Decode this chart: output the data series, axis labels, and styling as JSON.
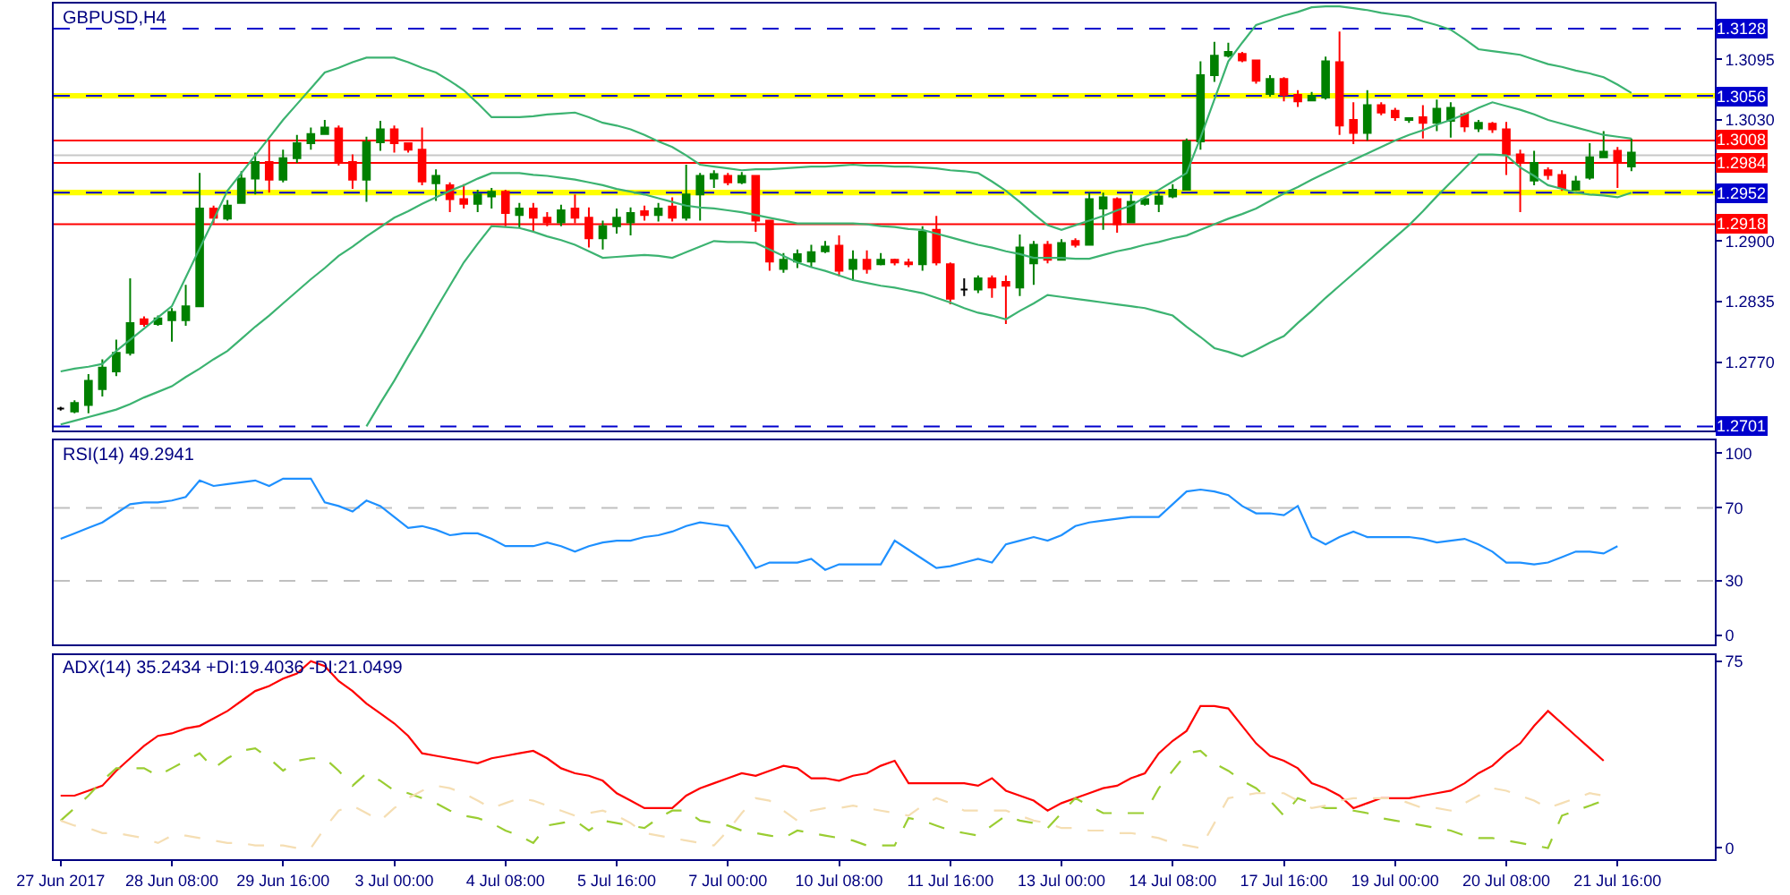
{
  "chart_data": [
    {
      "type": "candlestick",
      "title": "GBPUSD,H4",
      "tick_labels": "y",
      "categories": [
        "27 Jun 2017",
        null,
        null,
        null,
        null,
        null,
        null,
        null,
        "28 Jun 08:00",
        null,
        null,
        null,
        null,
        null,
        null,
        null,
        "29 Jun 16:00",
        null,
        null,
        null,
        null,
        null,
        null,
        null,
        "3 Jul 00:00",
        null,
        null,
        null,
        null,
        null,
        null,
        null,
        "4 Jul 08:00",
        null,
        null,
        null,
        null,
        null,
        null,
        null,
        "5 Jul 16:00",
        null,
        null,
        null,
        null,
        null,
        null,
        null,
        "7 Jul 00:00",
        null,
        null,
        null,
        null,
        null,
        null,
        null,
        "10 Jul 08:00",
        null,
        null,
        null,
        null,
        null,
        null,
        null,
        "11 Jul 16:00",
        null,
        null,
        null,
        null,
        null,
        null,
        null,
        "13 Jul 00:00",
        null,
        null,
        null,
        null,
        null,
        null,
        null,
        "14 Jul 08:00",
        null,
        null,
        null,
        null,
        null,
        null,
        null,
        "17 Jul 16:00",
        null,
        null,
        null,
        null,
        null,
        null,
        null,
        "19 Jul 00:00",
        null,
        null,
        null,
        null,
        null,
        null,
        null,
        "20 Jul 08:00",
        null,
        null,
        null,
        null,
        null,
        null,
        null,
        "21 Jul 16:00",
        null
      ],
      "ohlc": [
        [
          1.272,
          1.2722,
          1.2718,
          1.272
        ],
        [
          1.2717,
          1.2729,
          1.2715,
          1.2726
        ],
        [
          1.2724,
          1.2757,
          1.2715,
          1.275
        ],
        [
          1.2741,
          1.2773,
          1.2733,
          1.2764
        ],
        [
          1.276,
          1.2794,
          1.2755,
          1.278
        ],
        [
          1.278,
          1.286,
          1.2777,
          1.2812
        ],
        [
          1.2816,
          1.2819,
          1.2808,
          1.2811
        ],
        [
          1.2811,
          1.282,
          1.2809,
          1.2817
        ],
        [
          1.2815,
          1.2828,
          1.2792,
          1.2824
        ],
        [
          1.2815,
          1.2853,
          1.2809,
          1.283
        ],
        [
          1.283,
          1.2973,
          1.283,
          1.2935
        ],
        [
          1.2935,
          1.2938,
          1.2919,
          1.2925
        ],
        [
          1.2924,
          1.2944,
          1.2922,
          1.2938
        ],
        [
          1.2941,
          1.2975,
          1.2941,
          1.2967
        ],
        [
          1.2967,
          1.2995,
          1.295,
          1.2985
        ],
        [
          1.2985,
          1.3008,
          1.2952,
          1.2966
        ],
        [
          1.2966,
          1.2998,
          1.2963,
          1.2989
        ],
        [
          1.2989,
          1.3014,
          1.2984,
          1.3005
        ],
        [
          1.3005,
          1.3022,
          1.2998,
          1.3015
        ],
        [
          1.3015,
          1.303,
          1.3014,
          1.3022
        ],
        [
          1.3021,
          1.3024,
          1.2981,
          1.2985
        ],
        [
          1.2985,
          1.2993,
          1.2956,
          1.2966
        ],
        [
          1.2966,
          1.3012,
          1.2942,
          1.3006
        ],
        [
          1.3006,
          1.3029,
          1.2997,
          1.302
        ],
        [
          1.302,
          1.3024,
          1.2995,
          1.3005
        ],
        [
          1.3005,
          1.3006,
          1.2995,
          1.2998
        ],
        [
          1.2998,
          1.3022,
          1.296,
          1.2964
        ],
        [
          1.2962,
          1.2977,
          1.2943,
          1.297
        ],
        [
          1.296,
          1.2963,
          1.2931,
          1.2945
        ],
        [
          1.2945,
          1.2961,
          1.2935,
          1.294
        ],
        [
          1.294,
          1.2955,
          1.2931,
          1.295
        ],
        [
          1.2948,
          1.2957,
          1.2935,
          1.2953
        ],
        [
          1.2953,
          1.2955,
          1.2916,
          1.293
        ],
        [
          1.2928,
          1.2941,
          1.2914,
          1.2935
        ],
        [
          1.2935,
          1.2941,
          1.291,
          1.2925
        ],
        [
          1.2925,
          1.2931,
          1.2916,
          1.292
        ],
        [
          1.292,
          1.2939,
          1.2916,
          1.2933
        ],
        [
          1.2935,
          1.295,
          1.2919,
          1.2925
        ],
        [
          1.2925,
          1.2936,
          1.2893,
          1.2903
        ],
        [
          1.2903,
          1.2922,
          1.2891,
          1.2916
        ],
        [
          1.2916,
          1.2935,
          1.2908,
          1.2925
        ],
        [
          1.292,
          1.2936,
          1.2906,
          1.293
        ],
        [
          1.2932,
          1.2938,
          1.2922,
          1.2928
        ],
        [
          1.2928,
          1.2941,
          1.2921,
          1.2935
        ],
        [
          1.2937,
          1.2947,
          1.2921,
          1.2925
        ],
        [
          1.2925,
          1.2982,
          1.2922,
          1.295
        ],
        [
          1.295,
          1.2973,
          1.2922,
          1.297
        ],
        [
          1.2967,
          1.2976,
          1.2957,
          1.2972
        ],
        [
          1.297,
          1.2973,
          1.296,
          1.2963
        ],
        [
          1.2963,
          1.2974,
          1.2961,
          1.297
        ],
        [
          1.297,
          1.2971,
          1.291,
          1.2922
        ],
        [
          1.2922,
          1.2922,
          1.2868,
          1.2878
        ],
        [
          1.287,
          1.2887,
          1.2866,
          1.288
        ],
        [
          1.2878,
          1.2891,
          1.2871,
          1.2886
        ],
        [
          1.2878,
          1.2896,
          1.2872,
          1.2888
        ],
        [
          1.2889,
          1.29,
          1.2887,
          1.2894
        ],
        [
          1.2895,
          1.2906,
          1.2862,
          1.2868
        ],
        [
          1.287,
          1.289,
          1.2857,
          1.288
        ],
        [
          1.288,
          1.289,
          1.2865,
          1.287
        ],
        [
          1.2875,
          1.2887,
          1.2874,
          1.288
        ],
        [
          1.288,
          1.2881,
          1.2874,
          1.2877
        ],
        [
          1.2877,
          1.2881,
          1.2872,
          1.2875
        ],
        [
          1.2875,
          1.2916,
          1.2868,
          1.291
        ],
        [
          1.2912,
          1.2927,
          1.2874,
          1.2877
        ],
        [
          1.2875,
          1.2877,
          1.2832,
          1.2838
        ],
        [
          1.2848,
          1.286,
          1.2841,
          1.2848
        ],
        [
          1.2848,
          1.2863,
          1.2844,
          1.286
        ],
        [
          1.286,
          1.2863,
          1.2839,
          1.285
        ],
        [
          1.2856,
          1.2863,
          1.2811,
          1.2852
        ],
        [
          1.285,
          1.2907,
          1.2841,
          1.2893
        ],
        [
          1.2876,
          1.29,
          1.2853,
          1.2896
        ],
        [
          1.2896,
          1.29,
          1.2876,
          1.288
        ],
        [
          1.288,
          1.2902,
          1.2879,
          1.2898
        ],
        [
          1.29,
          1.2903,
          1.2893,
          1.2896
        ],
        [
          1.2896,
          1.2952,
          1.2895,
          1.2945
        ],
        [
          1.2935,
          1.2952,
          1.2912,
          1.2947
        ],
        [
          1.2945,
          1.2947,
          1.2909,
          1.2918
        ],
        [
          1.292,
          1.295,
          1.2919,
          1.2942
        ],
        [
          1.294,
          1.2947,
          1.2938,
          1.2945
        ],
        [
          1.294,
          1.2952,
          1.2931,
          1.2948
        ],
        [
          1.2948,
          1.2961,
          1.2946,
          1.2955
        ],
        [
          1.2955,
          1.301,
          1.2955,
          1.3007
        ],
        [
          1.3007,
          1.3093,
          1.2998,
          1.3078
        ],
        [
          1.3078,
          1.3114,
          1.3071,
          1.3099
        ],
        [
          1.3099,
          1.3113,
          1.3097,
          1.3103
        ],
        [
          1.3101,
          1.3103,
          1.3092,
          1.3094
        ],
        [
          1.3094,
          1.3095,
          1.3069,
          1.3072
        ],
        [
          1.3058,
          1.3078,
          1.3055,
          1.3074
        ],
        [
          1.3074,
          1.3076,
          1.305,
          1.3057
        ],
        [
          1.3057,
          1.3062,
          1.3044,
          1.305
        ],
        [
          1.3051,
          1.306,
          1.305,
          1.3056
        ],
        [
          1.3054,
          1.3098,
          1.3052,
          1.3093
        ],
        [
          1.3092,
          1.3125,
          1.3014,
          1.3024
        ],
        [
          1.303,
          1.3049,
          1.3004,
          1.3016
        ],
        [
          1.3016,
          1.3062,
          1.3008,
          1.3046
        ],
        [
          1.3046,
          1.3049,
          1.3035,
          1.3038
        ],
        [
          1.304,
          1.3043,
          1.3029,
          1.3033
        ],
        [
          1.303,
          1.3033,
          1.3027,
          1.3032
        ],
        [
          1.3033,
          1.3046,
          1.301,
          1.3027
        ],
        [
          1.3027,
          1.3052,
          1.3018,
          1.3042
        ],
        [
          1.3029,
          1.3049,
          1.3011,
          1.3043
        ],
        [
          1.3036,
          1.3038,
          1.3017,
          1.3023
        ],
        [
          1.3021,
          1.303,
          1.3017,
          1.3027
        ],
        [
          1.3026,
          1.3028,
          1.3016,
          1.302
        ],
        [
          1.302,
          1.3028,
          1.2971,
          1.2993
        ],
        [
          1.2993,
          1.2998,
          1.2931,
          1.2985
        ],
        [
          1.2965,
          1.2997,
          1.296,
          1.2984
        ],
        [
          1.2976,
          1.2979,
          1.2966,
          1.2971
        ],
        [
          1.2971,
          1.2976,
          1.2954,
          1.2957
        ],
        [
          1.2955,
          1.297,
          1.2954,
          1.2964
        ],
        [
          1.2968,
          1.3005,
          1.2966,
          1.299
        ],
        [
          1.299,
          1.3018,
          1.2989,
          1.2996
        ],
        [
          1.2997,
          1.3001,
          1.2957,
          1.2984
        ],
        [
          1.298,
          1.301,
          1.2975,
          1.2995
        ]
      ],
      "colors": [
        "#000000",
        "#008000",
        "#008000",
        "#008000",
        "#008000",
        "#008000",
        "#ff0000",
        "#008000",
        "#008000",
        "#008000",
        "#008000",
        "#ff0000",
        "#008000",
        "#008000",
        "#008000",
        "#ff0000",
        "#008000",
        "#008000",
        "#008000",
        "#008000",
        "#ff0000",
        "#ff0000",
        "#008000",
        "#008000",
        "#ff0000",
        "#ff0000",
        "#ff0000",
        "#008000",
        "#ff0000",
        "#ff0000",
        "#008000",
        "#008000",
        "#ff0000",
        "#008000",
        "#ff0000",
        "#ff0000",
        "#008000",
        "#ff0000",
        "#ff0000",
        "#008000",
        "#008000",
        "#008000",
        "#ff0000",
        "#008000",
        "#ff0000",
        "#008000",
        "#008000",
        "#008000",
        "#ff0000",
        "#008000",
        "#ff0000",
        "#ff0000",
        "#008000",
        "#008000",
        "#008000",
        "#008000",
        "#ff0000",
        "#008000",
        "#ff0000",
        "#008000",
        "#ff0000",
        "#ff0000",
        "#008000",
        "#ff0000",
        "#ff0000",
        "#000000",
        "#008000",
        "#ff0000",
        "#ff0000",
        "#008000",
        "#008000",
        "#ff0000",
        "#008000",
        "#ff0000",
        "#008000",
        "#008000",
        "#ff0000",
        "#008000",
        "#008000",
        "#008000",
        "#008000",
        "#008000",
        "#008000",
        "#008000",
        "#008000",
        "#ff0000",
        "#ff0000",
        "#008000",
        "#ff0000",
        "#ff0000",
        "#008000",
        "#008000",
        "#ff0000",
        "#ff0000",
        "#008000",
        "#ff0000",
        "#ff0000",
        "#008000",
        "#ff0000",
        "#008000",
        "#008000",
        "#ff0000",
        "#008000",
        "#ff0000",
        "#ff0000",
        "#ff0000",
        "#008000",
        "#ff0000",
        "#ff0000",
        "#008000",
        "#008000",
        "#008000",
        "#ff0000",
        "#008000"
      ],
      "series": [
        {
          "type": "line",
          "color": "#3cb371",
          "values": [
            1.276,
            1.2763,
            1.2765,
            1.2768,
            1.2782,
            1.2794,
            1.2806,
            1.2818,
            1.283,
            1.2861,
            1.2892,
            1.2923,
            1.2954,
            1.2973,
            1.2992,
            1.3011,
            1.303,
            1.3047,
            1.3064,
            1.3081,
            1.3086,
            1.3092,
            1.3097,
            1.3097,
            1.3097,
            1.3092,
            1.3086,
            1.3081,
            1.3072,
            1.3062,
            1.3048,
            1.3033,
            1.3033,
            1.3033,
            1.3034,
            1.3036,
            1.3037,
            1.3038,
            1.3033,
            1.3027,
            1.3024,
            1.302,
            1.3014,
            1.3007,
            1.3001,
            1.2992,
            1.2982,
            1.298,
            1.2978,
            1.2976,
            1.2977,
            1.2977,
            1.2978,
            1.2979,
            1.298,
            1.298,
            1.2981,
            1.2982,
            1.2981,
            1.2981,
            1.298,
            1.298,
            1.2979,
            1.2978,
            1.2976,
            1.2975,
            1.2973,
            1.2964,
            1.2954,
            1.2942,
            1.2929,
            1.2917,
            1.2912,
            1.2917,
            1.2922,
            1.2927,
            1.2933,
            1.2938,
            1.2947,
            1.2955,
            1.2964,
            1.2973,
            1.3011,
            1.3052,
            1.3093,
            1.3113,
            1.3132,
            1.3137,
            1.3142,
            1.3146,
            1.3151,
            1.3152,
            1.3152,
            1.315,
            1.3148,
            1.3145,
            1.3143,
            1.3141,
            1.3136,
            1.3132,
            1.3127,
            1.3117,
            1.3106,
            1.3104,
            1.3102,
            1.31,
            1.3095,
            1.309,
            1.3087,
            1.3083,
            1.308,
            1.3076,
            1.3068,
            1.3059
          ]
        },
        {
          "type": "line",
          "color": "#3cb371",
          "values": [
            1.2703,
            1.2707,
            1.2711,
            1.2715,
            1.2719,
            1.2725,
            1.2732,
            1.2738,
            1.2744,
            1.2754,
            1.2763,
            1.2773,
            1.2782,
            1.2795,
            1.2808,
            1.282,
            1.2833,
            1.2846,
            1.2859,
            1.2871,
            1.2884,
            1.2894,
            1.2905,
            1.2915,
            1.2925,
            1.2932,
            1.294,
            1.2947,
            1.2954,
            1.296,
            1.2967,
            1.2973,
            1.2973,
            1.2973,
            1.2971,
            1.297,
            1.2968,
            1.2966,
            1.2963,
            1.296,
            1.2956,
            1.2953,
            1.295,
            1.2946,
            1.2942,
            1.2938,
            1.2936,
            1.2935,
            1.2933,
            1.2931,
            1.2928,
            1.2925,
            1.2922,
            1.2919,
            1.2919,
            1.2919,
            1.2919,
            1.2919,
            1.2918,
            1.2916,
            1.2915,
            1.2913,
            1.2912,
            1.2908,
            1.2904,
            1.29,
            1.2896,
            1.2893,
            1.2889,
            1.2886,
            1.2882,
            1.2882,
            1.2882,
            1.2881,
            1.2881,
            1.2885,
            1.2889,
            1.2892,
            1.2896,
            1.2899,
            1.2903,
            1.2906,
            1.2912,
            1.2918,
            1.2924,
            1.2929,
            1.2935,
            1.2943,
            1.2951,
            1.2958,
            1.2966,
            1.2973,
            1.298,
            1.2987,
            1.2994,
            1.3001,
            1.3008,
            1.3014,
            1.3019,
            1.3025,
            1.303,
            1.3036,
            1.3043,
            1.3049,
            1.3045,
            1.3041,
            1.3036,
            1.303,
            1.3026,
            1.3022,
            1.3018,
            1.3014,
            1.3012,
            1.301
          ]
        },
        {
          "type": "line",
          "color": "#3cb371",
          "values": [
            null,
            null,
            null,
            null,
            null,
            null,
            null,
            null,
            null,
            null,
            null,
            null,
            null,
            null,
            null,
            null,
            null,
            null,
            null,
            null,
            null,
            null,
            1.2701,
            1.2726,
            1.275,
            1.2776,
            1.2801,
            1.2827,
            1.2852,
            1.2877,
            1.2897,
            1.2916,
            1.2915,
            1.2914,
            1.291,
            1.2905,
            1.2901,
            1.2896,
            1.2889,
            1.2882,
            1.2883,
            1.2884,
            1.2885,
            1.2884,
            1.2882,
            1.2888,
            1.2894,
            1.29,
            1.2899,
            1.2899,
            1.2898,
            1.2891,
            1.2884,
            1.2877,
            1.2872,
            1.2868,
            1.2863,
            1.2858,
            1.2855,
            1.2852,
            1.285,
            1.2847,
            1.2844,
            1.2839,
            1.2834,
            1.2828,
            1.2823,
            1.282,
            1.2816,
            1.2825,
            1.2833,
            1.2842,
            1.284,
            1.2838,
            1.2836,
            1.2834,
            1.2832,
            1.283,
            1.2828,
            1.2824,
            1.282,
            1.2808,
            1.2797,
            1.2785,
            1.2781,
            1.2776,
            1.2783,
            1.2791,
            1.2798,
            1.2812,
            1.2825,
            1.2839,
            1.2852,
            1.2865,
            1.2878,
            1.2891,
            1.2904,
            1.2917,
            1.2932,
            1.2948,
            1.2963,
            1.2978,
            1.2993,
            1.2993,
            1.2992,
            1.2979,
            1.297,
            1.296,
            1.2956,
            1.2952,
            1.295,
            1.2949,
            1.2947,
            1.2952
          ]
        }
      ],
      "ylim": [
        1.2697,
        1.3155
      ],
      "yticks": [
        1.3095,
        {
          "value": 1.303,
          "label": "1.3030"
        },
        {
          "value": 1.29,
          "label": "1.2900"
        },
        1.2835,
        {
          "value": 1.277,
          "label": "1.2770"
        }
      ],
      "bands": [
        {
          "axis": "y",
          "from": 1.3053,
          "to": 1.3059,
          "color": "#ffff00"
        },
        {
          "axis": "y",
          "from": 1.2949,
          "to": 1.2955,
          "color": "#ffff00"
        }
      ],
      "ref_lines": [
        {
          "axis": "y",
          "value": 1.3128,
          "label": "1.3128",
          "color": "#0000cd",
          "line_style": "dashed"
        },
        {
          "axis": "y",
          "value": 1.3056,
          "label": "1.3056",
          "color": "#0000cd",
          "line_style": "dashed"
        },
        {
          "axis": "y",
          "value": 1.3008,
          "label": "1.3008",
          "color": "#ff0000",
          "line_style": "solid"
        },
        {
          "axis": "y",
          "value": 1.2992,
          "color": "#c8c8c8",
          "line_style": "solid"
        },
        {
          "axis": "y",
          "value": 1.2984,
          "label": "1.2984",
          "color": "#ff0000",
          "line_style": "solid"
        },
        {
          "axis": "y",
          "value": 1.2952,
          "label": "1.2952",
          "color": "#0000cd",
          "line_style": "dashed"
        },
        {
          "axis": "y",
          "value": 1.2918,
          "label": "1.2918",
          "color": "#ff0000",
          "line_style": "solid"
        },
        {
          "axis": "y",
          "value": 1.2701,
          "label": "1.2701",
          "color": "#0000cd",
          "line_style": "dashed"
        }
      ]
    },
    {
      "type": "line",
      "title": "RSI(14) 49.2941",
      "tick_labels": "y",
      "categories": [
        "27 Jun 2017",
        null,
        null,
        null,
        null,
        null,
        null,
        null,
        "28 Jun 08:00",
        null,
        null,
        null,
        null,
        null,
        null,
        null,
        "29 Jun 16:00",
        null,
        null,
        null,
        null,
        null,
        null,
        null,
        "3 Jul 00:00",
        null,
        null,
        null,
        null,
        null,
        null,
        null,
        "4 Jul 08:00",
        null,
        null,
        null,
        null,
        null,
        null,
        null,
        "5 Jul 16:00",
        null,
        null,
        null,
        null,
        null,
        null,
        null,
        "7 Jul 00:00",
        null,
        null,
        null,
        null,
        null,
        null,
        null,
        "10 Jul 08:00",
        null,
        null,
        null,
        null,
        null,
        null,
        null,
        "11 Jul 16:00",
        null,
        null,
        null,
        null,
        null,
        null,
        null,
        "13 Jul 00:00",
        null,
        null,
        null,
        null,
        null,
        null,
        null,
        "14 Jul 08:00",
        null,
        null,
        null,
        null,
        null,
        null,
        null,
        "17 Jul 16:00",
        null,
        null,
        null,
        null,
        null,
        null,
        null,
        "19 Jul 00:00",
        null,
        null,
        null,
        null,
        null,
        null,
        null,
        "20 Jul 08:00",
        null,
        null,
        null,
        null,
        null,
        null,
        null,
        "21 Jul 16:00",
        null
      ],
      "series": [
        {
          "color": "#1e90ff",
          "values": [
            53,
            56,
            59,
            62,
            67,
            72,
            73,
            73,
            74,
            76,
            85,
            82,
            83,
            84,
            85,
            82,
            86,
            86,
            86,
            73,
            71,
            68,
            74,
            71,
            65,
            59,
            60,
            58,
            55,
            56,
            56,
            53,
            49,
            49,
            49,
            51,
            49,
            46,
            49,
            51,
            52,
            52,
            54,
            55,
            57,
            60,
            62,
            61,
            60,
            49,
            37,
            40,
            40,
            40,
            42,
            36,
            39,
            39,
            39,
            39,
            52,
            47,
            42,
            37,
            38,
            40,
            42,
            40,
            50,
            52,
            54,
            52,
            55,
            60,
            62,
            63,
            64,
            65,
            65,
            65,
            72,
            79,
            80,
            79,
            77,
            71,
            67,
            67,
            66,
            71,
            54,
            50,
            54,
            57,
            54,
            54,
            54,
            54,
            53,
            51,
            52,
            53,
            50,
            46,
            40,
            40,
            39,
            40,
            43,
            46,
            46,
            45,
            49,
            null
          ]
        }
      ],
      "ylim": [
        -5,
        107
      ],
      "yticks": [
        0,
        30,
        70,
        100
      ],
      "ref_lines": [
        {
          "axis": "y",
          "value": 70,
          "color": "#c0c0c0",
          "line_style": "dashed"
        },
        {
          "axis": "y",
          "value": 30,
          "color": "#c0c0c0",
          "line_style": "dashed"
        }
      ]
    },
    {
      "type": "line",
      "title": "ADX(14) 35.2434 +DI:19.4036 -DI:21.0499",
      "categories": [
        "27 Jun 2017",
        null,
        null,
        null,
        null,
        null,
        null,
        null,
        "28 Jun 08:00",
        null,
        null,
        null,
        null,
        null,
        null,
        null,
        "29 Jun 16:00",
        null,
        null,
        null,
        null,
        null,
        null,
        null,
        "3 Jul 00:00",
        null,
        null,
        null,
        null,
        null,
        null,
        null,
        "4 Jul 08:00",
        null,
        null,
        null,
        null,
        null,
        null,
        null,
        "5 Jul 16:00",
        null,
        null,
        null,
        null,
        null,
        null,
        null,
        "7 Jul 00:00",
        null,
        null,
        null,
        null,
        null,
        null,
        null,
        "10 Jul 08:00",
        null,
        null,
        null,
        null,
        null,
        null,
        null,
        "11 Jul 16:00",
        null,
        null,
        null,
        null,
        null,
        null,
        null,
        "13 Jul 00:00",
        null,
        null,
        null,
        null,
        null,
        null,
        null,
        "14 Jul 08:00",
        null,
        null,
        null,
        null,
        null,
        null,
        null,
        "17 Jul 16:00",
        null,
        null,
        null,
        null,
        null,
        null,
        null,
        "19 Jul 00:00",
        null,
        null,
        null,
        null,
        null,
        null,
        null,
        "20 Jul 08:00",
        null,
        null,
        null,
        null,
        null,
        null,
        null,
        "21 Jul 16:00",
        null
      ],
      "series": [
        {
          "color": "#ff0000",
          "line_style": "solid",
          "values": [
            21,
            21,
            23,
            25,
            31,
            36,
            41,
            45,
            46,
            48,
            49,
            52,
            55,
            59,
            63,
            65,
            68,
            70,
            75,
            73,
            67,
            63,
            58,
            54,
            50,
            45,
            38,
            37,
            36,
            35,
            34,
            36,
            37,
            38,
            39,
            36,
            32,
            30,
            29,
            27,
            22,
            19,
            16,
            16,
            16,
            21,
            24,
            26,
            28,
            30,
            29,
            31,
            33,
            32,
            28,
            28,
            27,
            29,
            30,
            33,
            35,
            26,
            26,
            26,
            26,
            26,
            25,
            28,
            23,
            21,
            19,
            15,
            18,
            20,
            22,
            24,
            25,
            28,
            30,
            38,
            43,
            47,
            57,
            57,
            56,
            49,
            42,
            37,
            35,
            32,
            26,
            24,
            21,
            16,
            18,
            20,
            20,
            20,
            21,
            22,
            23,
            26,
            30,
            33,
            38,
            42,
            49,
            55,
            50,
            45,
            40,
            35,
            null,
            null
          ]
        },
        {
          "color": "#9acd32",
          "line_style": "dashed",
          "values": [
            11,
            16,
            21,
            27,
            32,
            32,
            32,
            29,
            32,
            35,
            38,
            32,
            36,
            39,
            40,
            36,
            31,
            35,
            36,
            36,
            31,
            25,
            30,
            27,
            23,
            22,
            20,
            18,
            15,
            13,
            12,
            10,
            7,
            5,
            2,
            9,
            10,
            11,
            7,
            11,
            10,
            9,
            8,
            12,
            15,
            15,
            11,
            10,
            9,
            7,
            6,
            5,
            4,
            7,
            6,
            5,
            4,
            3,
            1,
            1,
            1,
            12,
            11,
            9,
            7,
            6,
            5,
            9,
            13,
            11,
            10,
            8,
            14,
            20,
            17,
            14,
            14,
            14,
            14,
            24,
            31,
            38,
            39,
            34,
            31,
            27,
            24,
            19,
            13,
            20,
            18,
            16,
            16,
            15,
            14,
            12,
            11,
            10,
            9,
            8,
            7,
            5,
            4,
            4,
            3,
            2,
            1,
            0,
            13,
            15,
            17,
            19,
            null,
            null
          ]
        },
        {
          "color": "#f5deb3",
          "line_style": "dashed",
          "values": [
            11,
            9,
            8,
            6,
            6,
            5,
            4,
            2,
            5,
            5,
            4,
            3,
            2,
            2,
            1,
            1,
            1,
            0,
            0,
            8,
            15,
            17,
            14,
            11,
            16,
            20,
            23,
            25,
            24,
            22,
            19,
            16,
            18,
            20,
            19,
            17,
            15,
            13,
            14,
            15,
            13,
            10,
            6,
            5,
            4,
            3,
            2,
            1,
            7,
            14,
            20,
            19,
            15,
            11,
            15,
            16,
            16,
            17,
            16,
            15,
            14,
            13,
            17,
            20,
            18,
            15,
            15,
            15,
            15,
            13,
            11,
            10,
            8,
            8,
            7,
            7,
            6,
            6,
            5,
            4,
            2,
            1,
            0,
            10,
            20,
            21,
            22,
            22,
            22,
            19,
            16,
            17,
            19,
            20,
            20,
            20,
            20,
            18,
            16,
            16,
            15,
            18,
            21,
            24,
            23,
            21,
            19,
            16,
            18,
            20,
            22,
            21,
            null,
            null
          ]
        }
      ],
      "ylim": [
        -4.5,
        77.5
      ],
      "yticks": [
        0,
        75
      ]
    }
  ]
}
